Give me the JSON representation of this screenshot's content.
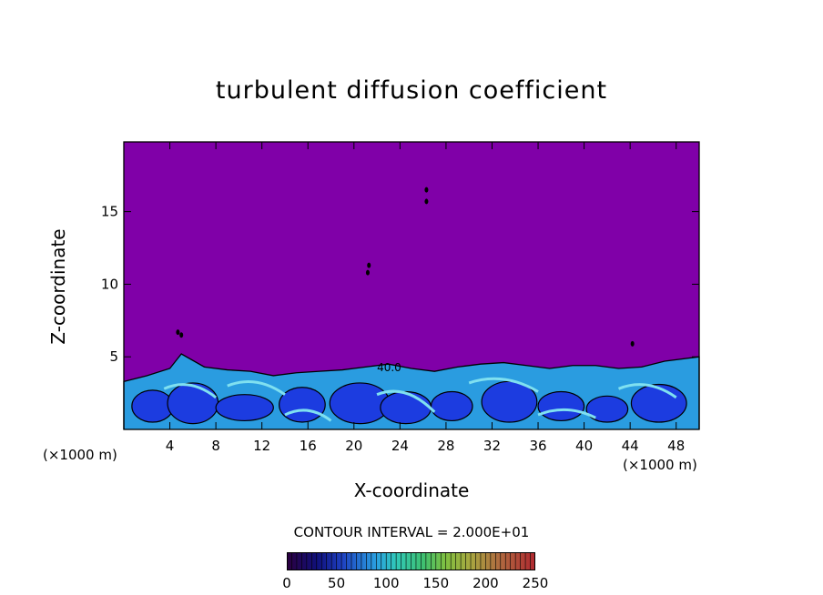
{
  "chart_data": {
    "type": "heatmap",
    "title": "turbulent diffusion coefficient",
    "xlabel": "X-coordinate",
    "ylabel": "Z-coordinate",
    "x_unit_label": "(×1000 m)",
    "x_ticks": [
      4,
      8,
      12,
      16,
      20,
      24,
      28,
      32,
      36,
      40,
      44,
      48
    ],
    "y_ticks": [
      5,
      10,
      15
    ],
    "xlim": [
      0,
      50
    ],
    "ylim": [
      0,
      19.8
    ],
    "contour_interval": "CONTOUR INTERVAL = 2.000E+01",
    "contour_label": "40.0",
    "colorbar_ticks": [
      0,
      50,
      100,
      150,
      200,
      250
    ],
    "colorbar_range": [
      0,
      250
    ],
    "background_value": 0,
    "background_color": "#8000a8",
    "turbulent_layer": {
      "top_height": [
        3.3,
        3.7,
        4.2,
        5.2,
        4.3,
        4.1,
        4.0,
        3.7,
        3.9,
        4.0,
        4.1,
        4.3,
        4.5,
        4.2,
        4.0,
        4.3,
        4.5,
        4.6,
        4.4,
        4.2,
        4.4,
        4.4,
        4.2,
        4.3,
        4.7,
        5.0
      ],
      "top_x": [
        0,
        2,
        4,
        5,
        7,
        9,
        11,
        13,
        15,
        17,
        19,
        21,
        23,
        25,
        27,
        29,
        31,
        33,
        35,
        37,
        39,
        41,
        43,
        45,
        47,
        50
      ]
    }
  }
}
